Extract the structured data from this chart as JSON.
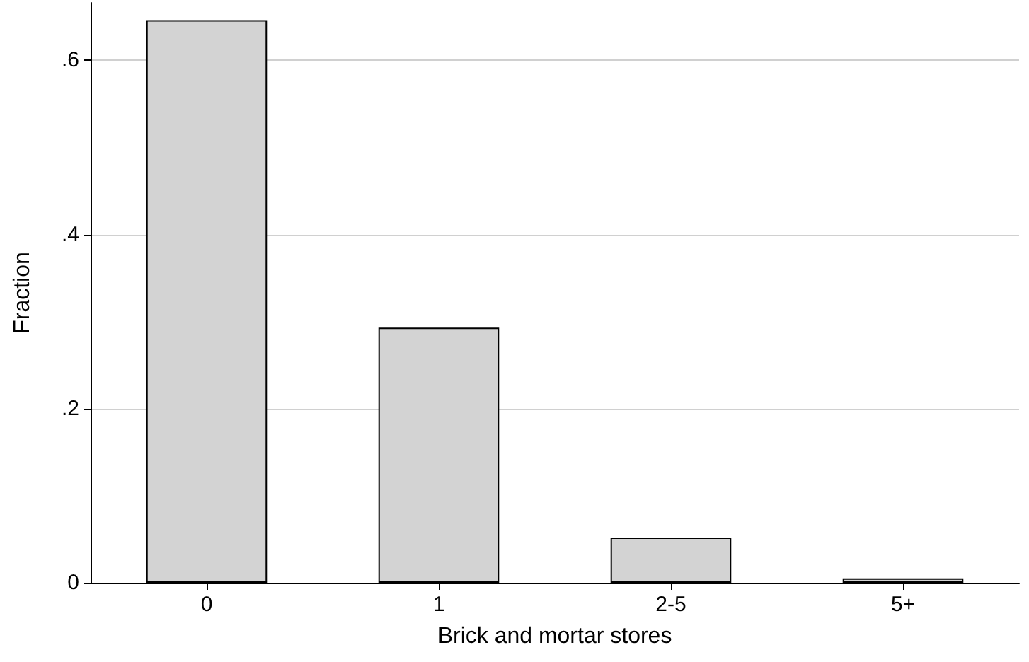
{
  "chart_data": {
    "type": "bar",
    "xlabel": "Brick and mortar stores",
    "ylabel": "Fraction",
    "categories": [
      "0",
      "1",
      "2-5",
      "5+"
    ],
    "values": [
      0.646,
      0.293,
      0.052,
      0.005
    ],
    "color": "#d3d3d3",
    "ylim": [
      0,
      0.666
    ],
    "yticks": [
      {
        "value": 0,
        "label": "0"
      },
      {
        "value": 0.2,
        "label": ".2"
      },
      {
        "value": 0.4,
        "label": ".4"
      },
      {
        "value": 0.6,
        "label": ".6"
      }
    ],
    "grid": "y"
  }
}
